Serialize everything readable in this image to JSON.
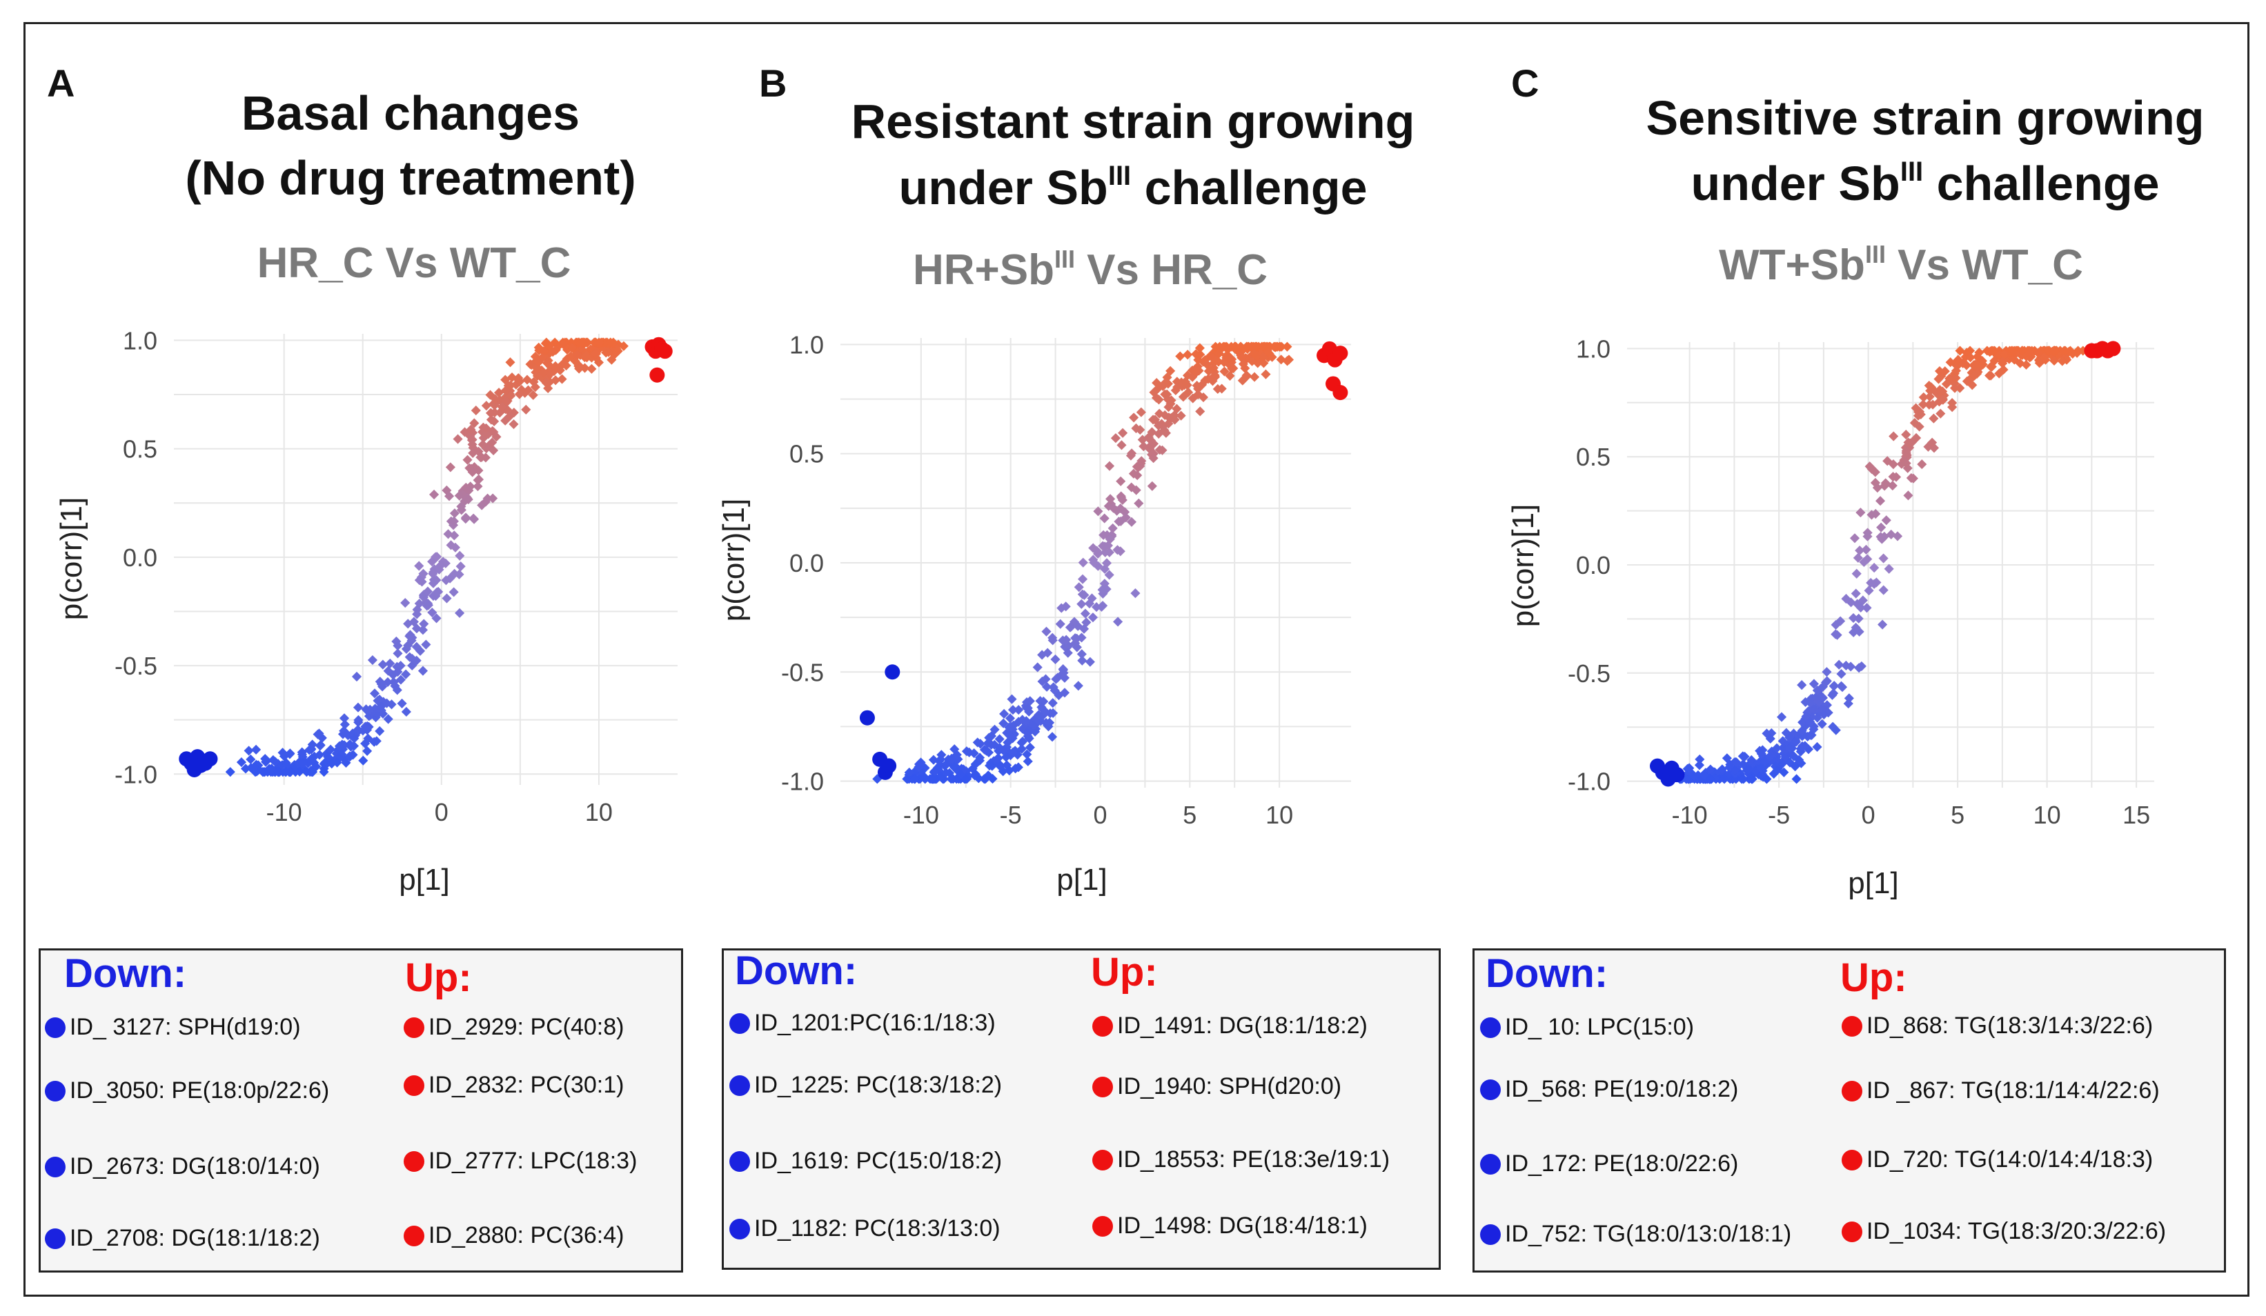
{
  "chart_data": [
    {
      "type": "scatter",
      "panel": "A",
      "title": [
        "Basal changes",
        "(No drug treatment)"
      ],
      "subtitle": {
        "text": "HR_C Vs WT_C",
        "sup1": "",
        "rest": ""
      },
      "xlabel": "p[1]",
      "ylabel": "p(corr)[1]",
      "xlim": [
        -17,
        15
      ],
      "ylim": [
        -1.05,
        1.03
      ],
      "xticks": [
        -10,
        0,
        10
      ],
      "yticks": [
        -1.0,
        -0.5,
        0.0,
        0.5,
        1.0
      ],
      "xtick_labels": [
        "-10",
        "0",
        "10"
      ],
      "ytick_labels": [
        "-1.0",
        "-0.5",
        "0.0",
        "0.5",
        "1.0"
      ],
      "curve": {
        "x_min": -12,
        "x_max": 11,
        "sigma_x": 0.075,
        "half_width": 4.6
      },
      "highlight_down": [
        [
          -16.2,
          -0.93
        ],
        [
          -15.9,
          -0.95
        ],
        [
          -15.7,
          -0.98
        ],
        [
          -15.5,
          -0.92
        ],
        [
          -15.3,
          -0.96
        ],
        [
          -15.0,
          -0.95
        ],
        [
          -14.7,
          -0.93
        ]
      ],
      "highlight_up": [
        [
          13.4,
          0.97
        ],
        [
          13.6,
          0.95
        ],
        [
          13.8,
          0.98
        ],
        [
          14.0,
          0.96
        ],
        [
          14.2,
          0.95
        ],
        [
          13.7,
          0.84
        ]
      ],
      "gradient": {
        "low": "#3355ee",
        "mid": "#9a80c8",
        "high": "#f06a3a"
      }
    },
    {
      "type": "scatter",
      "panel": "B",
      "title": [
        "Resistant strain growing",
        "under Sb"
      ],
      "title_sup": "III",
      "title_tail": " challenge",
      "subtitle": {
        "text": "HR+Sb",
        "sup1": "III",
        "rest": " Vs HR_C"
      },
      "xlabel": "p[1]",
      "ylabel": "p(corr)[1]",
      "xlim": [
        -14.5,
        14
      ],
      "ylim": [
        -1.03,
        1.03
      ],
      "xticks": [
        -10,
        -5,
        0,
        5,
        10
      ],
      "yticks": [
        -1.0,
        -0.5,
        0.0,
        0.5,
        1.0
      ],
      "xtick_labels": [
        "-10",
        "-5",
        "0",
        "5",
        "10"
      ],
      "ytick_labels": [
        "-1.0",
        "-0.5",
        "0.0",
        "0.5",
        "1.0"
      ],
      "curve": {
        "x_min": -10.5,
        "x_max": 10,
        "sigma_x": 0.085,
        "half_width": 4.2
      },
      "highlight_down": [
        [
          -13.0,
          -0.71
        ],
        [
          -12.3,
          -0.9
        ],
        [
          -12.0,
          -0.96
        ],
        [
          -11.8,
          -0.93
        ],
        [
          -11.6,
          -0.5
        ]
      ],
      "highlight_up": [
        [
          12.5,
          0.95
        ],
        [
          12.8,
          0.98
        ],
        [
          13.1,
          0.93
        ],
        [
          13.4,
          0.96
        ],
        [
          13.0,
          0.82
        ],
        [
          13.4,
          0.78
        ]
      ],
      "gradient": {
        "low": "#3355ee",
        "mid": "#9a80c8",
        "high": "#f06a3a"
      }
    },
    {
      "type": "scatter",
      "panel": "C",
      "title": [
        "Sensitive strain growing",
        "under Sb"
      ],
      "title_sup": "III",
      "title_tail": " challenge",
      "subtitle": {
        "text": "WT+Sb",
        "sup1": "III",
        "rest": " Vs WT_C"
      },
      "xlabel": "p[1]",
      "ylabel": "p(corr)[1]",
      "xlim": [
        -13.5,
        16
      ],
      "ylim": [
        -1.03,
        1.03
      ],
      "xticks": [
        -10,
        -5,
        0,
        5,
        10,
        15
      ],
      "yticks": [
        -1.0,
        -0.5,
        0.0,
        0.5,
        1.0
      ],
      "xtick_labels": [
        "-10",
        "-5",
        "0",
        "5",
        "10",
        "15"
      ],
      "ytick_labels": [
        "-1.0",
        "-0.5",
        "0.0",
        "0.5",
        "1.0"
      ],
      "curve": {
        "x_min": -10.5,
        "x_max": 11.5,
        "sigma_x": 0.06,
        "half_width": 3.6
      },
      "highlight_down": [
        [
          -11.8,
          -0.93
        ],
        [
          -11.5,
          -0.96
        ],
        [
          -11.2,
          -0.99
        ],
        [
          -11.0,
          -0.94
        ],
        [
          -10.7,
          -0.97
        ]
      ],
      "highlight_up": [
        [
          12.5,
          0.99
        ],
        [
          12.8,
          0.99
        ],
        [
          13.1,
          1.0
        ],
        [
          13.4,
          0.99
        ],
        [
          13.7,
          1.0
        ]
      ],
      "gradient": {
        "low": "#3355ee",
        "mid": "#9a80c8",
        "high": "#f06a3a"
      }
    }
  ],
  "legends": [
    {
      "down_label": "Down:",
      "up_label": "Up:",
      "down": [
        "ID_ 3127: SPH(d19:0)",
        "ID_3050: PE(18:0p/22:6)",
        "ID_2673: DG(18:0/14:0)",
        "ID_2708: DG(18:1/18:2)"
      ],
      "up": [
        "ID_2929: PC(40:8)",
        "ID_2832: PC(30:1)",
        "ID_2777: LPC(18:3)",
        "ID_2880: PC(36:4)"
      ]
    },
    {
      "down_label": "Down:",
      "up_label": "Up:",
      "down": [
        "ID_1201:PC(16:1/18:3)",
        "ID_1225: PC(18:3/18:2)",
        "ID_1619: PC(15:0/18:2)",
        "ID_1182: PC(18:3/13:0)"
      ],
      "up": [
        "ID_1491: DG(18:1/18:2)",
        "ID_1940: SPH(d20:0)",
        "ID_18553: PE(18:3e/19:1)",
        "ID_1498: DG(18:4/18:1)"
      ]
    },
    {
      "down_label": "Down:",
      "up_label": "Up:",
      "down": [
        "ID_ 10: LPC(15:0)",
        "ID_568: PE(19:0/18:2)",
        "ID_172: PE(18:0/22:6)",
        "ID_752: TG(18:0/13:0/18:1)"
      ],
      "up": [
        "ID_868: TG(18:3/14:3/22:6)",
        "ID _867: TG(18:1/14:4/22:6)",
        "ID_720: TG(14:0/14:4/18:3)",
        "ID_1034: TG(18:3/20:3/22:6)"
      ]
    }
  ],
  "colors": {
    "down": "#1a22e0",
    "up": "#ee1111",
    "highlight_down": "#1020d8",
    "highlight_up": "#ee1111"
  }
}
